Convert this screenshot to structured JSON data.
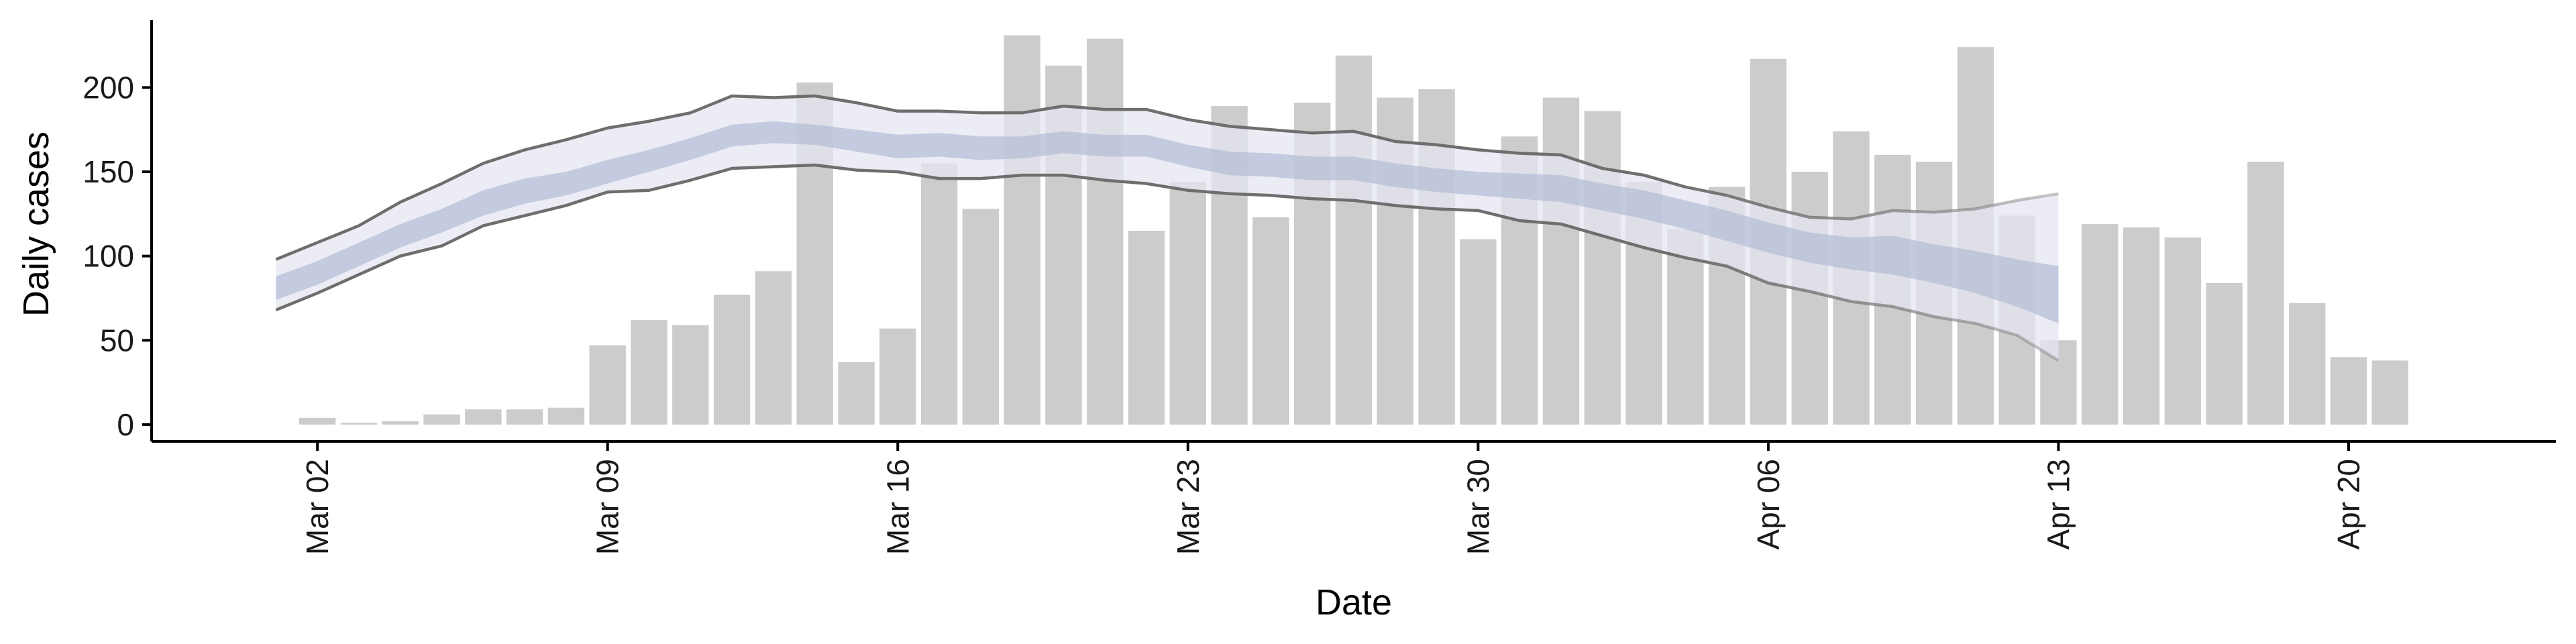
{
  "chart_data": {
    "type": "bar",
    "xlabel": "Date",
    "ylabel": "Daily cases",
    "ylim": [
      -10,
      240
    ],
    "yticks": [
      0,
      50,
      100,
      150,
      200
    ],
    "x_ticks": [
      {
        "day": 2,
        "label": "Mar 02"
      },
      {
        "day": 9,
        "label": "Mar 09"
      },
      {
        "day": 16,
        "label": "Mar 16"
      },
      {
        "day": 23,
        "label": "Mar 23"
      },
      {
        "day": 30,
        "label": "Mar 30"
      },
      {
        "day": 37,
        "label": "Apr 06"
      },
      {
        "day": 44,
        "label": "Apr 13"
      },
      {
        "day": 51,
        "label": "Apr 20"
      }
    ],
    "xlim_days": [
      -2,
      56
    ],
    "grid": false,
    "colors": {
      "bars": "#cccccc",
      "band_outer": "#e4e6f0",
      "band_inner": "#b4bcd6",
      "bound_lines": "#6e6e6e"
    },
    "bars": {
      "start_day": 1,
      "values": [
        0,
        4,
        1,
        2,
        6,
        9,
        9,
        10,
        47,
        62,
        59,
        77,
        91,
        203,
        37,
        57,
        155,
        128,
        231,
        213,
        229,
        115,
        144,
        189,
        123,
        191,
        219,
        194,
        199,
        110,
        171,
        194,
        186,
        144,
        116,
        141,
        217,
        150,
        174,
        160,
        156,
        224,
        124,
        50,
        119,
        117,
        111,
        84,
        156,
        72,
        40,
        38
      ]
    },
    "estimate": {
      "start_day": 1,
      "outer_upper": [
        98,
        108,
        118,
        132,
        143,
        155,
        163,
        169,
        176,
        180,
        185,
        195,
        194,
        195,
        191,
        186,
        186,
        185,
        185,
        189,
        187,
        187,
        181,
        177,
        175,
        173,
        174,
        168,
        166,
        163,
        161,
        160,
        152,
        148,
        141,
        136,
        129,
        123,
        122,
        127,
        126,
        128,
        133,
        137
      ],
      "inner_upper": [
        88,
        97,
        108,
        119,
        128,
        139,
        146,
        150,
        157,
        163,
        170,
        178,
        180,
        178,
        175,
        172,
        173,
        171,
        171,
        174,
        172,
        172,
        166,
        162,
        161,
        159,
        159,
        155,
        152,
        150,
        149,
        148,
        143,
        139,
        133,
        127,
        120,
        114,
        111,
        112,
        107,
        103,
        98,
        94
      ],
      "inner_lower": [
        74,
        83,
        94,
        105,
        114,
        124,
        131,
        136,
        143,
        150,
        157,
        165,
        167,
        166,
        162,
        158,
        159,
        157,
        158,
        161,
        159,
        159,
        153,
        148,
        147,
        145,
        145,
        141,
        138,
        136,
        134,
        132,
        127,
        122,
        116,
        109,
        102,
        96,
        92,
        89,
        84,
        78,
        70,
        60
      ],
      "outer_lower": [
        68,
        78,
        89,
        100,
        106,
        118,
        124,
        130,
        138,
        139,
        145,
        152,
        153,
        154,
        151,
        150,
        146,
        146,
        148,
        148,
        145,
        143,
        139,
        137,
        136,
        134,
        133,
        130,
        128,
        127,
        121,
        119,
        112,
        105,
        99,
        94,
        84,
        79,
        73,
        70,
        64,
        60,
        53,
        38
      ]
    }
  }
}
